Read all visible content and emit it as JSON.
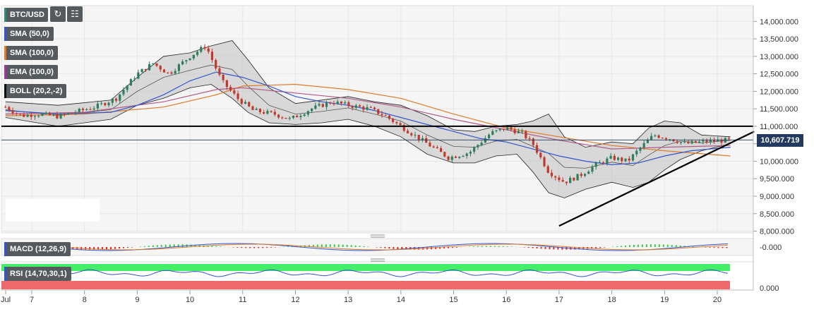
{
  "symbol": "BTC/USD",
  "toolbar": {
    "refresh_icon": "refresh-icon",
    "calendar_icon": "calendar-icon"
  },
  "colors": {
    "background": "#f5f5f5",
    "grid": "#e6e6e6",
    "candle_up": "#2e7d5b",
    "candle_down": "#c0392b",
    "sma50": "#3355cc",
    "sma100": "#e07b2a",
    "ema100": "#b05a8a",
    "boll_fill": "#c8c8c8",
    "price_tag": "#233a5e",
    "rsi_overbought": "#44ee66",
    "rsi_oversold": "#ee6a6a"
  },
  "indicators": [
    {
      "label": "SMA (50,0)",
      "color": "#3355cc"
    },
    {
      "label": "SMA (100,0)",
      "color": "#e07b2a"
    },
    {
      "label": "EMA (100,0)",
      "color": "#9b3a9b"
    },
    {
      "label": "BOLL (20,2,-2)",
      "color": "#111111"
    }
  ],
  "current_price": "10,607.719",
  "macd_label": "MACD (12,26,9)",
  "macd_value": "-0.000",
  "rsi_label": "RSI (14,70,30,1)",
  "rsi_value": "0.000",
  "chart_data": {
    "type": "candlestick",
    "x_ticks": [
      "Jul",
      "7",
      "8",
      "9",
      "10",
      "11",
      "12",
      "13",
      "14",
      "15",
      "16",
      "17",
      "18",
      "19",
      "20"
    ],
    "y_ticks": [
      "14,000.000",
      "13,500.000",
      "13,000.000",
      "12,500.000",
      "12,000.000",
      "11,500.000",
      "11,000.000",
      "10,500.000",
      "10,000.000",
      "9,500.000",
      "9,000.000",
      "8,500.000",
      "8,000.000"
    ],
    "ylim": [
      7950,
      14450
    ],
    "horizontal_line": 11000,
    "current_price_line": 10608,
    "trendline": {
      "from": {
        "day": 17.0,
        "price": 8150
      },
      "to": {
        "day": 20.7,
        "price": 10850
      }
    },
    "price_path": [
      [
        6.5,
        11550
      ],
      [
        6.8,
        11300
      ],
      [
        7.1,
        11350
      ],
      [
        7.5,
        11280
      ],
      [
        7.8,
        11400
      ],
      [
        8.2,
        11550
      ],
      [
        8.6,
        11800
      ],
      [
        9.0,
        12500
      ],
      [
        9.3,
        12800
      ],
      [
        9.6,
        12500
      ],
      [
        10.0,
        13000
      ],
      [
        10.3,
        13300
      ],
      [
        10.6,
        12300
      ],
      [
        10.9,
        11800
      ],
      [
        11.2,
        11450
      ],
      [
        11.6,
        11350
      ],
      [
        11.9,
        11200
      ],
      [
        12.3,
        11500
      ],
      [
        12.7,
        11700
      ],
      [
        13.0,
        11600
      ],
      [
        13.4,
        11500
      ],
      [
        13.7,
        11300
      ],
      [
        14.0,
        11000
      ],
      [
        14.3,
        10700
      ],
      [
        14.6,
        10400
      ],
      [
        14.9,
        10100
      ],
      [
        15.3,
        10250
      ],
      [
        15.7,
        10800
      ],
      [
        16.0,
        10950
      ],
      [
        16.3,
        10800
      ],
      [
        16.5,
        10500
      ],
      [
        16.8,
        9700
      ],
      [
        17.1,
        9400
      ],
      [
        17.4,
        9600
      ],
      [
        17.7,
        9900
      ],
      [
        18.0,
        10100
      ],
      [
        18.3,
        10000
      ],
      [
        18.55,
        10400
      ],
      [
        18.8,
        10750
      ],
      [
        19.1,
        10650
      ],
      [
        19.4,
        10500
      ],
      [
        19.7,
        10550
      ],
      [
        20.0,
        10580
      ],
      [
        20.25,
        10608
      ]
    ],
    "sma50_path": [
      [
        6.5,
        11450
      ],
      [
        7.5,
        11350
      ],
      [
        8.5,
        11400
      ],
      [
        9.0,
        11600
      ],
      [
        9.5,
        11900
      ],
      [
        10.0,
        12300
      ],
      [
        10.5,
        12550
      ],
      [
        11.0,
        12400
      ],
      [
        11.5,
        12150
      ],
      [
        12.0,
        11850
      ],
      [
        12.5,
        11700
      ],
      [
        13.0,
        11600
      ],
      [
        13.5,
        11450
      ],
      [
        14.0,
        11250
      ],
      [
        14.5,
        11050
      ],
      [
        15.0,
        10850
      ],
      [
        15.5,
        10650
      ],
      [
        16.0,
        10550
      ],
      [
        16.5,
        10350
      ],
      [
        17.0,
        10150
      ],
      [
        17.5,
        10000
      ],
      [
        18.0,
        9900
      ],
      [
        18.5,
        9950
      ],
      [
        19.0,
        10150
      ],
      [
        19.5,
        10300
      ],
      [
        20.25,
        10400
      ]
    ],
    "sma100_path": [
      [
        6.5,
        11300
      ],
      [
        8.0,
        11350
      ],
      [
        9.5,
        11550
      ],
      [
        10.5,
        11900
      ],
      [
        11.0,
        12150
      ],
      [
        12.0,
        12200
      ],
      [
        13.0,
        12050
      ],
      [
        14.0,
        11800
      ],
      [
        15.0,
        11350
      ],
      [
        16.0,
        10950
      ],
      [
        17.0,
        10700
      ],
      [
        18.0,
        10450
      ],
      [
        19.0,
        10300
      ],
      [
        20.25,
        10150
      ]
    ],
    "ema100_path": [
      [
        6.5,
        11350
      ],
      [
        8.0,
        11400
      ],
      [
        9.5,
        11700
      ],
      [
        10.5,
        12050
      ],
      [
        11.0,
        12100
      ],
      [
        12.0,
        11950
      ],
      [
        13.0,
        11800
      ],
      [
        14.0,
        11550
      ],
      [
        15.0,
        11200
      ],
      [
        16.0,
        10900
      ],
      [
        17.0,
        10600
      ],
      [
        18.0,
        10350
      ],
      [
        19.0,
        10400
      ],
      [
        20.25,
        10450
      ]
    ],
    "boll_upper": [
      [
        6.5,
        11700
      ],
      [
        7.5,
        11600
      ],
      [
        8.5,
        11750
      ],
      [
        9.0,
        12400
      ],
      [
        9.5,
        13000
      ],
      [
        10.0,
        13100
      ],
      [
        10.4,
        13300
      ],
      [
        10.8,
        13450
      ],
      [
        11.1,
        12900
      ],
      [
        11.5,
        12100
      ],
      [
        12.0,
        11650
      ],
      [
        12.5,
        11750
      ],
      [
        13.0,
        11850
      ],
      [
        13.5,
        11700
      ],
      [
        14.0,
        11600
      ],
      [
        14.5,
        11300
      ],
      [
        15.0,
        10900
      ],
      [
        15.4,
        10850
      ],
      [
        15.8,
        11000
      ],
      [
        16.2,
        11050
      ],
      [
        16.5,
        11150
      ],
      [
        16.8,
        11350
      ],
      [
        17.1,
        10700
      ],
      [
        17.5,
        10400
      ],
      [
        18.0,
        10550
      ],
      [
        18.4,
        10500
      ],
      [
        18.7,
        10950
      ],
      [
        19.0,
        11150
      ],
      [
        19.3,
        11100
      ],
      [
        19.7,
        10750
      ],
      [
        20.25,
        10700
      ]
    ],
    "boll_lower": [
      [
        6.5,
        11250
      ],
      [
        7.5,
        11000
      ],
      [
        8.5,
        11200
      ],
      [
        9.0,
        11600
      ],
      [
        9.5,
        11800
      ],
      [
        10.0,
        12100
      ],
      [
        10.4,
        12200
      ],
      [
        10.8,
        11800
      ],
      [
        11.1,
        11400
      ],
      [
        11.5,
        11100
      ],
      [
        12.0,
        11050
      ],
      [
        12.5,
        11100
      ],
      [
        13.0,
        11200
      ],
      [
        13.5,
        11000
      ],
      [
        14.0,
        10700
      ],
      [
        14.5,
        10200
      ],
      [
        15.0,
        9950
      ],
      [
        15.4,
        9950
      ],
      [
        15.8,
        10150
      ],
      [
        16.2,
        10200
      ],
      [
        16.5,
        9700
      ],
      [
        16.8,
        9100
      ],
      [
        17.1,
        8950
      ],
      [
        17.5,
        9200
      ],
      [
        18.0,
        9400
      ],
      [
        18.4,
        9250
      ],
      [
        18.7,
        9400
      ],
      [
        19.0,
        9750
      ],
      [
        19.3,
        10050
      ],
      [
        19.7,
        10300
      ],
      [
        20.25,
        10500
      ]
    ]
  }
}
